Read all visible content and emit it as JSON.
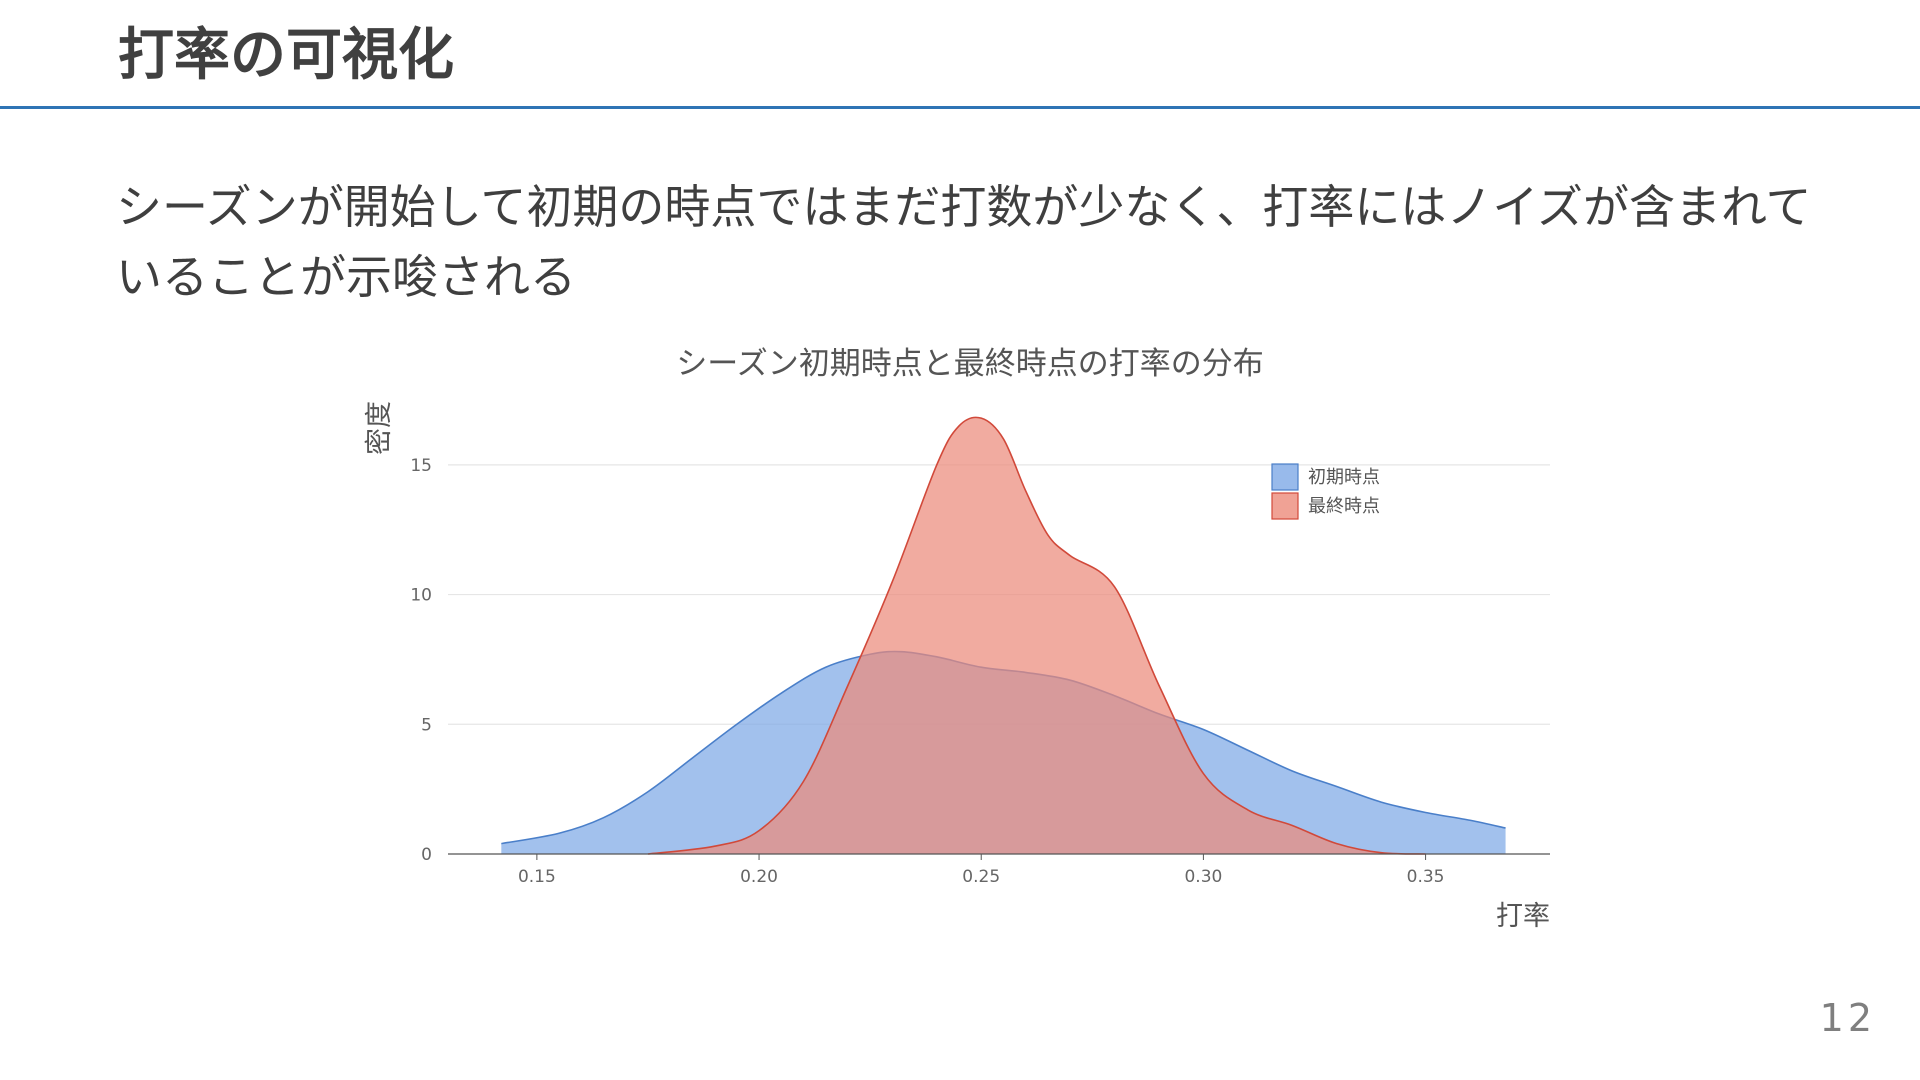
{
  "slide": {
    "title": "打率の可視化",
    "body_text": "シーズンが開始して初期の時点ではまだ打数が少なく、打率にはノイズが含まれていることが示唆される",
    "page_number": "12",
    "accent_color": "#2e74b5"
  },
  "chart_data": {
    "type": "area",
    "title": "シーズン初期時点と最終時点の打率の分布",
    "xlabel": "打率",
    "ylabel": "密度",
    "xlim": [
      0.13,
      0.378
    ],
    "ylim": [
      0,
      17.5
    ],
    "xticks": [
      0.15,
      0.2,
      0.25,
      0.3,
      0.35
    ],
    "xtick_labels": [
      "0.15",
      "0.20",
      "0.25",
      "0.30",
      "0.35"
    ],
    "yticks": [
      0,
      5,
      10,
      15
    ],
    "ytick_labels": [
      "0",
      "5",
      "10",
      "15"
    ],
    "grid": true,
    "legend_position": "top-right",
    "series": [
      {
        "name": "初期時点",
        "fill": "#7ea9e6",
        "stroke": "#4a7fc9",
        "x": [
          0.142,
          0.155,
          0.165,
          0.175,
          0.185,
          0.195,
          0.205,
          0.215,
          0.225,
          0.232,
          0.24,
          0.25,
          0.26,
          0.27,
          0.28,
          0.29,
          0.3,
          0.31,
          0.32,
          0.33,
          0.34,
          0.35,
          0.36,
          0.368
        ],
        "y": [
          0.4,
          0.8,
          1.4,
          2.4,
          3.7,
          5.0,
          6.2,
          7.2,
          7.7,
          7.8,
          7.6,
          7.2,
          7.0,
          6.7,
          6.1,
          5.4,
          4.8,
          4.0,
          3.2,
          2.6,
          2.0,
          1.6,
          1.3,
          1.0
        ]
      },
      {
        "name": "最終時点",
        "fill": "#ec8b7b",
        "stroke": "#d1493a",
        "x": [
          0.175,
          0.19,
          0.2,
          0.21,
          0.22,
          0.23,
          0.24,
          0.245,
          0.25,
          0.255,
          0.26,
          0.265,
          0.27,
          0.28,
          0.29,
          0.3,
          0.31,
          0.32,
          0.33,
          0.34,
          0.35
        ],
        "y": [
          0.0,
          0.3,
          0.9,
          2.8,
          6.5,
          10.5,
          15.0,
          16.5,
          16.8,
          16.0,
          14.0,
          12.3,
          11.5,
          10.3,
          6.5,
          3.1,
          1.7,
          1.1,
          0.4,
          0.05,
          0.0
        ]
      }
    ]
  }
}
